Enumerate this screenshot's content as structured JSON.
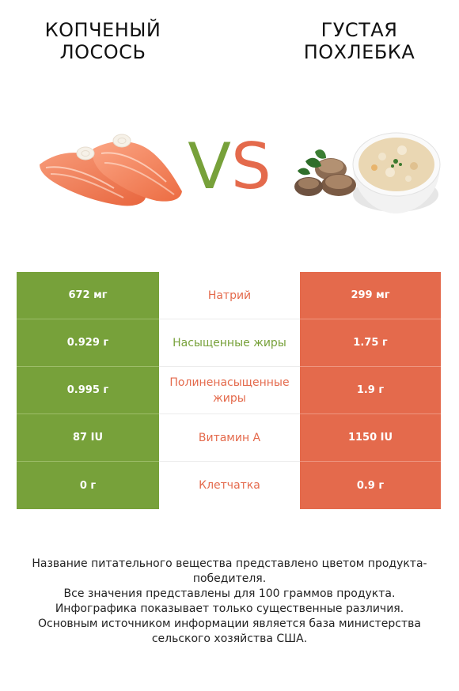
{
  "header": {
    "left_title": "КОПЧЕНЫЙ\nЛОСОСЬ",
    "right_title": "ГУСТАЯ\nПОХЛЕБКА",
    "vs_v": "V",
    "vs_s": "S"
  },
  "colors": {
    "left_accent": "#77a13a",
    "right_accent": "#e46a4c"
  },
  "table": {
    "rows": [
      {
        "left": "672 мг",
        "nutrient": "Натрий",
        "right": "299 мг",
        "winner": "right"
      },
      {
        "left": "0.929 г",
        "nutrient": "Насыщенные жиры",
        "right": "1.75 г",
        "winner": "left"
      },
      {
        "left": "0.995 г",
        "nutrient": "Полиненасыщенные жиры",
        "right": "1.9 г",
        "winner": "right"
      },
      {
        "left": "87 IU",
        "nutrient": "Витамин A",
        "right": "1150 IU",
        "winner": "right"
      },
      {
        "left": "0 г",
        "nutrient": "Клетчатка",
        "right": "0.9 г",
        "winner": "right"
      }
    ]
  },
  "footer": {
    "line1": "Название питательного вещества представлено цветом продукта-победителя.",
    "line2": "Все значения представлены для 100 граммов продукта.",
    "line3": "Инфографика показывает только существенные различия.",
    "line4": "Основным источником информации является база министерства сельского хозяйства США."
  },
  "images": {
    "left": "smoked-salmon-slices",
    "right": "chowder-bowl-with-clams"
  }
}
